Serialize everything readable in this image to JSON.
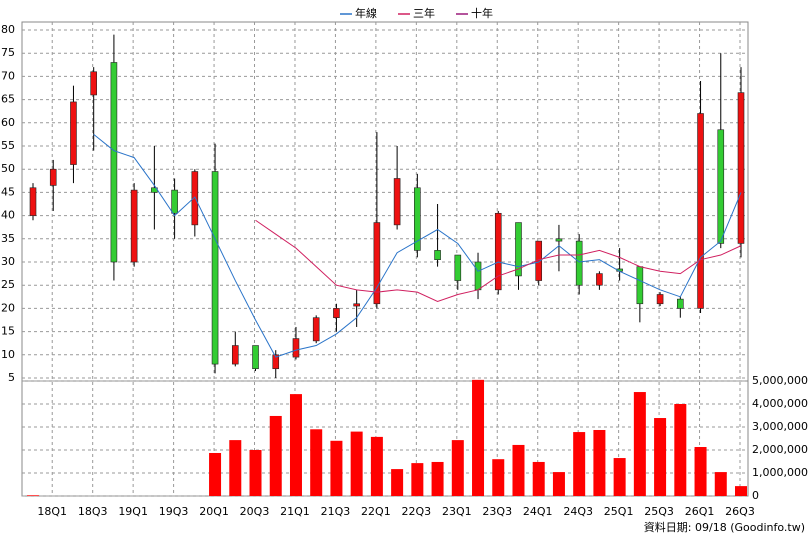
{
  "chart_data": [
    {
      "type": "candlestick",
      "categories": [
        null,
        "18Q1",
        null,
        "18Q3",
        null,
        "19Q1",
        null,
        "19Q3",
        null,
        "20Q1",
        null,
        "20Q3",
        null,
        "21Q1",
        null,
        "21Q3",
        null,
        "22Q1",
        null,
        "22Q3",
        null,
        "23Q1",
        null,
        "23Q3",
        null,
        "24Q1",
        null,
        "24Q3",
        null,
        "25Q1",
        null,
        "25Q3",
        null,
        "26Q1",
        null,
        "26Q3"
      ],
      "open": [
        40,
        46.5,
        51,
        66,
        73,
        30,
        46,
        45.5,
        38,
        49.5,
        8,
        12,
        7,
        9.5,
        13,
        18,
        20.5,
        21,
        38,
        46,
        32.5,
        31.5,
        30,
        24,
        38.5,
        26,
        35,
        34.5,
        25,
        28.5,
        29,
        21,
        22,
        20,
        58.5,
        34
      ],
      "high": [
        47,
        52,
        68,
        72,
        79,
        47,
        55,
        48,
        50,
        55.5,
        15,
        12,
        11,
        16,
        18.5,
        21,
        24,
        58,
        55,
        49,
        42.5,
        31.5,
        32,
        41,
        38.5,
        34.5,
        38,
        36,
        28,
        33,
        29,
        23.5,
        22.5,
        69,
        75,
        72
      ],
      "low": [
        39,
        41,
        47,
        54,
        26,
        29,
        37,
        35,
        35.5,
        6,
        7.5,
        6.5,
        5,
        9,
        12.5,
        15,
        16,
        20,
        37,
        31,
        29,
        24,
        22,
        23,
        24,
        25,
        28,
        23,
        24,
        26,
        17,
        20.5,
        18,
        19,
        33,
        31
      ],
      "close": [
        46,
        50,
        64.5,
        71,
        30,
        45.5,
        45,
        40.5,
        49.5,
        8,
        12,
        7,
        10,
        13.5,
        18,
        20,
        21,
        38.5,
        48,
        32.5,
        30.5,
        26,
        24,
        40.5,
        27,
        34.5,
        34.5,
        25,
        27.5,
        28,
        21,
        23,
        20,
        62,
        34,
        66.5
      ],
      "up_color": "#ee1111",
      "down_color": "#33cc33",
      "series": [
        {
          "name": "年線",
          "color": "#2a74c9",
          "values": [
            null,
            null,
            null,
            57.5,
            54,
            52.5,
            46.5,
            40,
            44,
            35,
            26,
            17.5,
            9.5,
            11,
            12,
            14.5,
            18,
            24.5,
            32,
            34.5,
            37,
            34,
            28,
            30,
            29,
            30,
            33.5,
            30,
            30.5,
            28,
            26,
            24,
            22.5,
            31,
            34.5,
            45
          ]
        },
        {
          "name": "三年",
          "color": "#d02060",
          "values": [
            null,
            null,
            null,
            null,
            null,
            null,
            null,
            null,
            null,
            null,
            null,
            39,
            36,
            33,
            29,
            25,
            24,
            23.5,
            24,
            23.5,
            21.5,
            23,
            24,
            27,
            28.5,
            30.5,
            31.5,
            31.5,
            32.5,
            31,
            29,
            28,
            27.5,
            30.5,
            31.5,
            33.5
          ]
        },
        {
          "name": "十年",
          "color": "#9a1a7a",
          "values": [
            null,
            null,
            null,
            null,
            null,
            null,
            null,
            null,
            null,
            null,
            null,
            null,
            null,
            null,
            null,
            null,
            null,
            null,
            null,
            null,
            null,
            null,
            null,
            null,
            null,
            null,
            null,
            null,
            null,
            null,
            null,
            null,
            null,
            null,
            null,
            null
          ]
        }
      ],
      "ylim": [
        5,
        80
      ],
      "yticks": [
        5,
        10,
        15,
        20,
        25,
        30,
        35,
        40,
        45,
        50,
        55,
        60,
        65,
        70,
        75,
        80
      ],
      "grid": true,
      "legend": "top"
    },
    {
      "type": "bar",
      "values": [
        30000,
        0,
        0,
        0,
        0,
        0,
        0,
        0,
        0,
        1870000,
        2430000,
        2000000,
        3480000,
        4430000,
        2900000,
        2400000,
        2800000,
        2570000,
        1170000,
        1430000,
        1480000,
        2430000,
        5050000,
        1600000,
        2220000,
        1480000,
        1040000,
        2780000,
        2870000,
        1650000,
        4520000,
        3390000,
        4000000,
        2130000,
        1040000,
        430000
      ],
      "color": "#ff0000",
      "ylim": [
        0,
        5000000
      ],
      "yticks": [
        0,
        {
          "value": 1000000,
          "label": "1,000,000"
        },
        {
          "value": 2000000,
          "label": "2,000,000"
        },
        {
          "value": 3000000,
          "label": "3,000,000"
        },
        {
          "value": 4000000,
          "label": "4,000,000"
        },
        {
          "value": 5000000,
          "label": "5,000,000"
        }
      ],
      "annotation": "資料日期: 09/18 (Goodinfo.tw)"
    }
  ]
}
